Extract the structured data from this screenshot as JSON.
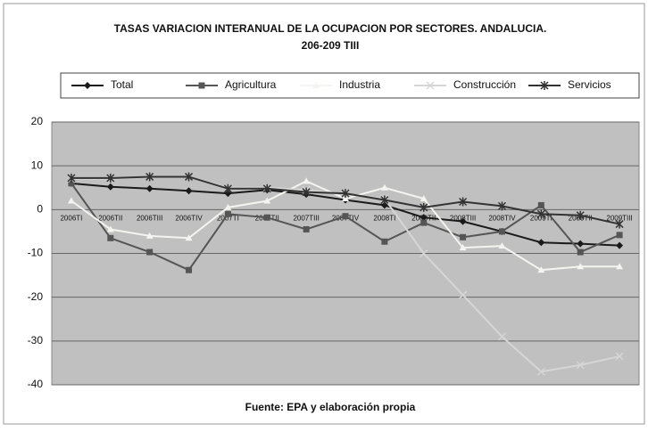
{
  "chart_data": {
    "type": "line",
    "title": "TASAS VARIACION  INTERANUAL DE LA OCUPACION POR SECTORES. ANDALUCIA.",
    "subtitle": "206-209 TIII",
    "note": "Fuente: EPA y elaboración propia",
    "categories": [
      "2006TI",
      "2006TII",
      "2006TIII",
      "2006TIV",
      "2007TI",
      "2007TII",
      "2007TIII",
      "2007TIV",
      "2008TI",
      "2008TII",
      "2008TIII",
      "2008TIV",
      "2009TI",
      "2009TII",
      "2009TIII"
    ],
    "series": [
      {
        "name": "Total",
        "color": "#1a1a1a",
        "marker": "diamond",
        "values": [
          6,
          5.2,
          4.8,
          4.3,
          3.7,
          4.5,
          3.5,
          2.2,
          1,
          -1.8,
          -2.7,
          -5,
          -7.5,
          -7.8,
          -8.2
        ]
      },
      {
        "name": "Agricultura",
        "color": "#555555",
        "marker": "square",
        "values": [
          6,
          -6.5,
          -9.7,
          -13.8,
          -1,
          -1.8,
          -4.5,
          -1.5,
          -7.3,
          -3,
          -6.3,
          -5,
          1,
          -9.7,
          -5.8
        ]
      },
      {
        "name": "Industria",
        "color": "#f4f4f0",
        "marker": "triangle",
        "values": [
          2,
          -4.5,
          -6,
          -6.5,
          0.5,
          2,
          6.5,
          2.5,
          5,
          2.5,
          -8.7,
          -8.3,
          -13.8,
          -13,
          -13
        ]
      },
      {
        "name": "Construcción",
        "color": "#d6d6d6",
        "marker": "x",
        "values": [
          7,
          7,
          7.5,
          7.5,
          5,
          5,
          4.5,
          3.5,
          2.5,
          -10,
          -19.5,
          -29,
          -37,
          -35.5,
          -33.5
        ]
      },
      {
        "name": "Servicios",
        "color": "#333333",
        "marker": "star",
        "values": [
          7.2,
          7.2,
          7.5,
          7.5,
          4.8,
          4.8,
          4,
          3.7,
          2.2,
          0.5,
          1.8,
          0.8,
          -1,
          -1.3,
          -3.3
        ]
      }
    ],
    "ylim": [
      -40,
      20
    ],
    "yticks": [
      -40,
      -30,
      -20,
      -10,
      0,
      10,
      20
    ],
    "grid": true
  }
}
